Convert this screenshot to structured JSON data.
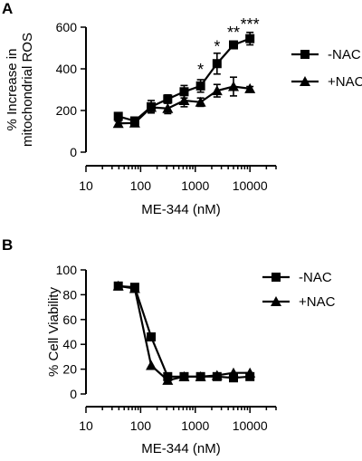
{
  "chart_data": [
    {
      "panel": "A",
      "type": "line",
      "xscale": "log",
      "xlim": [
        10,
        30000
      ],
      "xticks": [
        10,
        100,
        1000,
        10000
      ],
      "xtick_labels": [
        "10",
        "100",
        "1000",
        "10000"
      ],
      "xlabel": "ME-344 (nM)",
      "ylabel_lines": [
        "% Increase in",
        "mitochondrial ROS"
      ],
      "ylim": [
        0,
        600
      ],
      "yticks": [
        0,
        200,
        400,
        600
      ],
      "ytick_labels": [
        "0",
        "200",
        "400",
        "600"
      ],
      "legend_position": "right",
      "x": [
        39,
        78,
        156,
        313,
        625,
        1250,
        2500,
        5000,
        10000
      ],
      "series": [
        {
          "name": "-NAC",
          "marker": "square",
          "values": [
            172,
            150,
            218,
            255,
            290,
            318,
            425,
            515,
            545
          ],
          "errors": [
            10,
            15,
            30,
            20,
            30,
            30,
            50,
            15,
            30
          ]
        },
        {
          "name": "+NAC",
          "marker": "triangle",
          "values": [
            138,
            140,
            215,
            210,
            248,
            240,
            295,
            315,
            305
          ],
          "errors": [
            10,
            10,
            20,
            25,
            30,
            20,
            30,
            45,
            10
          ]
        }
      ],
      "annotations": [
        {
          "text": "*",
          "x": 1250,
          "y": 370
        },
        {
          "text": "*",
          "x": 2500,
          "y": 480
        },
        {
          "text": "**",
          "x": 5000,
          "y": 548
        },
        {
          "text": "***",
          "x": 10000,
          "y": 588
        }
      ]
    },
    {
      "panel": "B",
      "type": "line",
      "xscale": "log",
      "xlim": [
        10,
        30000
      ],
      "xticks": [
        10,
        100,
        1000,
        10000
      ],
      "xtick_labels": [
        "10",
        "100",
        "1000",
        "10000"
      ],
      "xlabel": "ME-344 (nM)",
      "ylabel_lines": [
        "% Cell Viability"
      ],
      "ylim": [
        0,
        100
      ],
      "yticks": [
        0,
        20,
        40,
        60,
        80,
        100
      ],
      "ytick_labels": [
        "0",
        "20",
        "40",
        "60",
        "80",
        "100"
      ],
      "legend_position": "right",
      "x": [
        39,
        78,
        156,
        313,
        625,
        1250,
        2500,
        5000,
        10000
      ],
      "series": [
        {
          "name": "-NAC",
          "marker": "square",
          "values": [
            87,
            86,
            46,
            14,
            14,
            14,
            14,
            13,
            14
          ]
        },
        {
          "name": "+NAC",
          "marker": "triangle",
          "values": [
            87,
            85,
            23,
            11,
            14,
            14,
            15,
            17,
            17
          ]
        }
      ]
    }
  ]
}
